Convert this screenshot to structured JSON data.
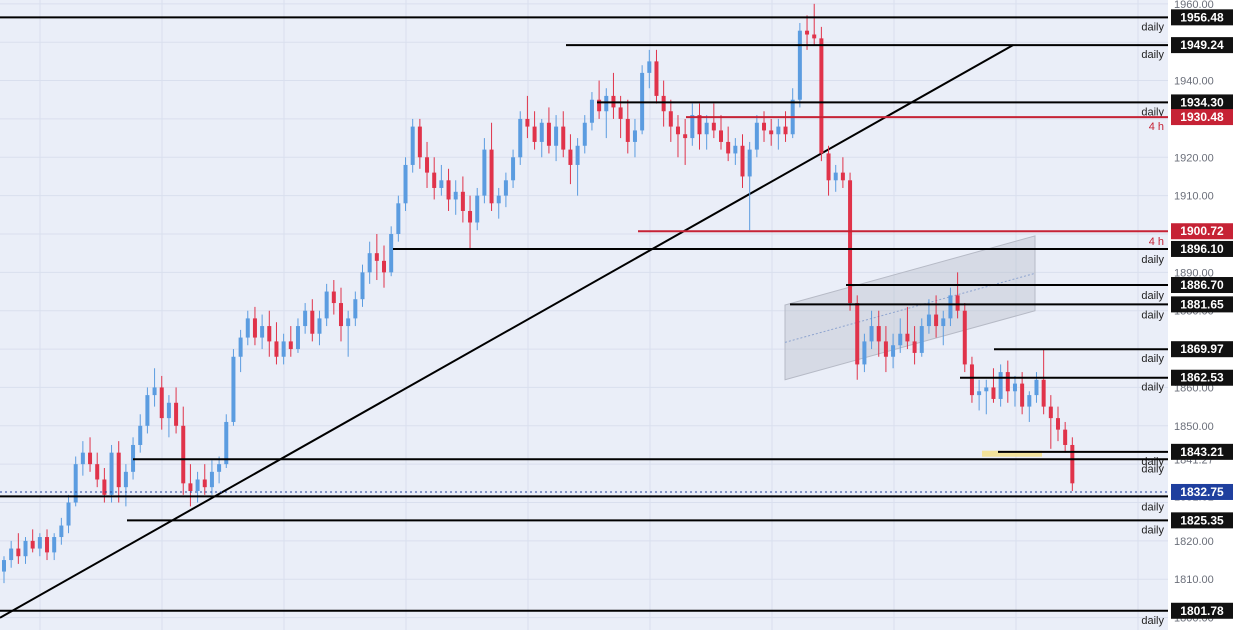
{
  "colors": {
    "background": "#eaeef8",
    "axis_background": "#ffffff",
    "grid": "#d9dfee",
    "bull": "#5b9ce0",
    "bear": "#e0334a",
    "support_line": "#000000",
    "h4_line": "#c62235",
    "current_price": "#1f3f9e",
    "channel_fill": "#b6bac6",
    "channel_mid": "#8ea4cf",
    "highlight": "#f5e08a",
    "axis_text": "#6b6f7a"
  },
  "chart_data": {
    "type": "candlestick",
    "title": "",
    "ylim": [
      1800,
      1960
    ],
    "y_ticks": [
      "1960.00",
      "1940.00",
      "1920.00",
      "1910.00",
      "1890.00",
      "1880.00",
      "1860.00",
      "1850.00",
      "1841.27",
      "1831.61",
      "1820.00",
      "1810.00",
      "1800.00"
    ],
    "ohlc": [
      [
        1812,
        1816,
        1809,
        1815
      ],
      [
        1815,
        1820,
        1813,
        1818
      ],
      [
        1818,
        1822,
        1814,
        1816
      ],
      [
        1816,
        1821,
        1814,
        1820
      ],
      [
        1820,
        1823,
        1817,
        1818
      ],
      [
        1818,
        1822,
        1816,
        1821
      ],
      [
        1821,
        1823,
        1815,
        1817
      ],
      [
        1817,
        1822,
        1815,
        1821
      ],
      [
        1821,
        1826,
        1819,
        1824
      ],
      [
        1824,
        1832,
        1822,
        1830
      ],
      [
        1830,
        1842,
        1829,
        1840
      ],
      [
        1840,
        1846,
        1837,
        1843
      ],
      [
        1843,
        1847,
        1838,
        1840
      ],
      [
        1840,
        1843,
        1834,
        1836
      ],
      [
        1836,
        1839,
        1830,
        1832
      ],
      [
        1832,
        1845,
        1830,
        1843
      ],
      [
        1843,
        1846,
        1830,
        1834
      ],
      [
        1834,
        1840,
        1829,
        1838
      ],
      [
        1838,
        1847,
        1836,
        1845
      ],
      [
        1845,
        1853,
        1843,
        1850
      ],
      [
        1850,
        1860,
        1848,
        1858
      ],
      [
        1858,
        1865,
        1855,
        1860
      ],
      [
        1860,
        1863,
        1849,
        1852
      ],
      [
        1852,
        1858,
        1847,
        1856
      ],
      [
        1856,
        1860,
        1848,
        1850
      ],
      [
        1850,
        1855,
        1832,
        1835
      ],
      [
        1835,
        1840,
        1829,
        1833
      ],
      [
        1833,
        1838,
        1830,
        1836
      ],
      [
        1836,
        1840,
        1832,
        1834
      ],
      [
        1834,
        1841,
        1832,
        1838
      ],
      [
        1838,
        1842,
        1835,
        1840
      ],
      [
        1840,
        1853,
        1839,
        1851
      ],
      [
        1851,
        1870,
        1850,
        1868
      ],
      [
        1868,
        1875,
        1864,
        1873
      ],
      [
        1873,
        1880,
        1871,
        1878
      ],
      [
        1878,
        1881,
        1871,
        1873
      ],
      [
        1873,
        1879,
        1870,
        1876
      ],
      [
        1876,
        1880,
        1868,
        1872
      ],
      [
        1872,
        1877,
        1866,
        1868
      ],
      [
        1868,
        1874,
        1866,
        1872
      ],
      [
        1872,
        1876,
        1868,
        1870
      ],
      [
        1870,
        1878,
        1869,
        1876
      ],
      [
        1876,
        1882,
        1874,
        1880
      ],
      [
        1880,
        1883,
        1872,
        1874
      ],
      [
        1874,
        1880,
        1871,
        1878
      ],
      [
        1878,
        1887,
        1876,
        1885
      ],
      [
        1885,
        1888,
        1879,
        1882
      ],
      [
        1882,
        1886,
        1872,
        1876
      ],
      [
        1876,
        1880,
        1868,
        1878
      ],
      [
        1878,
        1885,
        1876,
        1883
      ],
      [
        1883,
        1892,
        1881,
        1890
      ],
      [
        1890,
        1898,
        1887,
        1895
      ],
      [
        1895,
        1900,
        1888,
        1893
      ],
      [
        1893,
        1897,
        1886,
        1890
      ],
      [
        1890,
        1902,
        1889,
        1900
      ],
      [
        1900,
        1910,
        1898,
        1908
      ],
      [
        1908,
        1920,
        1906,
        1918
      ],
      [
        1918,
        1930,
        1916,
        1928
      ],
      [
        1928,
        1930,
        1917,
        1920
      ],
      [
        1920,
        1924,
        1912,
        1916
      ],
      [
        1916,
        1920,
        1909,
        1912
      ],
      [
        1912,
        1918,
        1910,
        1914
      ],
      [
        1914,
        1917,
        1906,
        1909
      ],
      [
        1909,
        1914,
        1905,
        1911
      ],
      [
        1911,
        1915,
        1903,
        1906
      ],
      [
        1906,
        1910,
        1896,
        1903
      ],
      [
        1903,
        1912,
        1901,
        1910
      ],
      [
        1910,
        1925,
        1908,
        1922
      ],
      [
        1922,
        1929,
        1906,
        1908
      ],
      [
        1908,
        1912,
        1904,
        1910
      ],
      [
        1910,
        1916,
        1907,
        1914
      ],
      [
        1914,
        1922,
        1912,
        1920
      ],
      [
        1920,
        1932,
        1918,
        1930
      ],
      [
        1930,
        1936,
        1925,
        1928
      ],
      [
        1928,
        1932,
        1922,
        1924
      ],
      [
        1924,
        1930,
        1920,
        1929
      ],
      [
        1929,
        1933,
        1921,
        1923
      ],
      [
        1923,
        1931,
        1919,
        1928
      ],
      [
        1928,
        1932,
        1920,
        1922
      ],
      [
        1922,
        1926,
        1913,
        1918
      ],
      [
        1918,
        1925,
        1910,
        1923
      ],
      [
        1923,
        1931,
        1921,
        1929
      ],
      [
        1929,
        1937,
        1927,
        1935
      ],
      [
        1935,
        1940,
        1930,
        1932
      ],
      [
        1932,
        1938,
        1925,
        1936
      ],
      [
        1936,
        1942,
        1930,
        1933
      ],
      [
        1933,
        1936,
        1925,
        1930
      ],
      [
        1930,
        1935,
        1921,
        1924
      ],
      [
        1924,
        1930,
        1920,
        1927
      ],
      [
        1927,
        1944,
        1926,
        1942
      ],
      [
        1942,
        1948,
        1938,
        1945
      ],
      [
        1945,
        1948,
        1934,
        1936
      ],
      [
        1936,
        1940,
        1928,
        1932
      ],
      [
        1932,
        1935,
        1924,
        1928
      ],
      [
        1928,
        1931,
        1920,
        1926
      ],
      [
        1926,
        1930,
        1918,
        1925
      ],
      [
        1925,
        1934,
        1923,
        1931
      ],
      [
        1931,
        1934,
        1922,
        1926
      ],
      [
        1926,
        1931,
        1922,
        1929
      ],
      [
        1929,
        1934,
        1925,
        1927
      ],
      [
        1927,
        1931,
        1922,
        1924
      ],
      [
        1924,
        1928,
        1919,
        1921
      ],
      [
        1921,
        1925,
        1918,
        1923
      ],
      [
        1923,
        1926,
        1912,
        1915
      ],
      [
        1915,
        1924,
        1901,
        1922
      ],
      [
        1922,
        1931,
        1920,
        1929
      ],
      [
        1929,
        1932,
        1924,
        1927
      ],
      [
        1927,
        1930,
        1923,
        1926
      ],
      [
        1926,
        1930,
        1922,
        1928
      ],
      [
        1928,
        1932,
        1924,
        1926
      ],
      [
        1926,
        1938,
        1925,
        1935
      ],
      [
        1935,
        1955,
        1933,
        1953
      ],
      [
        1953,
        1957,
        1948,
        1952
      ],
      [
        1952,
        1960,
        1949,
        1951
      ],
      [
        1951,
        1954,
        1919,
        1921
      ],
      [
        1921,
        1923,
        1910,
        1914
      ],
      [
        1914,
        1918,
        1911,
        1916
      ],
      [
        1916,
        1920,
        1912,
        1914
      ],
      [
        1914,
        1916,
        1880,
        1882
      ],
      [
        1882,
        1884,
        1862,
        1866
      ],
      [
        1866,
        1874,
        1864,
        1872
      ],
      [
        1872,
        1880,
        1870,
        1876
      ],
      [
        1876,
        1880,
        1868,
        1872
      ],
      [
        1872,
        1876,
        1864,
        1868
      ],
      [
        1868,
        1874,
        1865,
        1871
      ],
      [
        1871,
        1878,
        1869,
        1874
      ],
      [
        1874,
        1881,
        1870,
        1872
      ],
      [
        1872,
        1876,
        1866,
        1869
      ],
      [
        1869,
        1878,
        1868,
        1876
      ],
      [
        1876,
        1883,
        1874,
        1879
      ],
      [
        1879,
        1884,
        1873,
        1876
      ],
      [
        1876,
        1880,
        1871,
        1878
      ],
      [
        1878,
        1886,
        1876,
        1884
      ],
      [
        1884,
        1890,
        1878,
        1880
      ],
      [
        1880,
        1882,
        1864,
        1866
      ],
      [
        1866,
        1868,
        1856,
        1858
      ],
      [
        1858,
        1862,
        1854,
        1859
      ],
      [
        1859,
        1862,
        1853,
        1860
      ],
      [
        1860,
        1865,
        1856,
        1857
      ],
      [
        1857,
        1866,
        1855,
        1864
      ],
      [
        1864,
        1867,
        1856,
        1859
      ],
      [
        1859,
        1863,
        1855,
        1861
      ],
      [
        1861,
        1864,
        1853,
        1855
      ],
      [
        1855,
        1859,
        1851,
        1858
      ],
      [
        1858,
        1864,
        1856,
        1862
      ],
      [
        1862,
        1870,
        1853,
        1855
      ],
      [
        1855,
        1858,
        1844,
        1852
      ],
      [
        1852,
        1855,
        1846,
        1849
      ],
      [
        1849,
        1851,
        1843,
        1845
      ],
      [
        1845,
        1847,
        1833,
        1835
      ]
    ],
    "levels": [
      {
        "value": "1956.48",
        "label": "daily",
        "kind": "daily"
      },
      {
        "value": "1949.24",
        "label": "daily",
        "kind": "daily"
      },
      {
        "value": "1934.30",
        "label": "daily",
        "kind": "daily"
      },
      {
        "value": "1930.48",
        "label": "4 h",
        "kind": "h4"
      },
      {
        "value": "1900.72",
        "label": "4 h",
        "kind": "h4"
      },
      {
        "value": "1896.10",
        "label": "daily",
        "kind": "daily"
      },
      {
        "value": "1886.70",
        "label": "daily",
        "kind": "daily"
      },
      {
        "value": "1881.65",
        "label": "daily",
        "kind": "daily"
      },
      {
        "value": "1869.97",
        "label": "daily",
        "kind": "daily"
      },
      {
        "value": "1862.53",
        "label": "daily",
        "kind": "daily"
      },
      {
        "value": "1843.21",
        "label": "daily",
        "kind": "daily"
      },
      {
        "value": "1841.27",
        "label": "daily",
        "kind": "daily"
      },
      {
        "value": "1831.61",
        "label": "daily",
        "kind": "daily"
      },
      {
        "value": "1825.35",
        "label": "daily",
        "kind": "daily"
      },
      {
        "value": "1801.78",
        "label": "daily",
        "kind": "daily"
      }
    ],
    "current_price": "1832.75",
    "trendline": {
      "from": 1801,
      "to": 1949.24
    },
    "channel": {
      "lower_start": 1862,
      "lower_end": 1880,
      "upper_start": 1881.5,
      "upper_end": 1899.5
    }
  }
}
